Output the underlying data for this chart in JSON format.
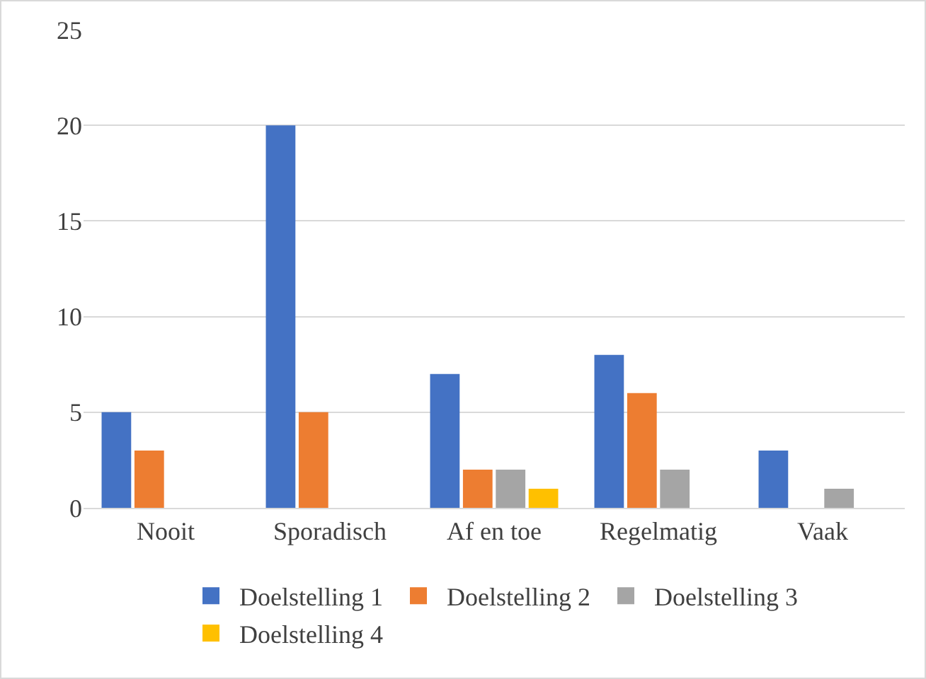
{
  "chart_data": {
    "type": "bar",
    "categories": [
      "Nooit",
      "Sporadisch",
      "Af en toe",
      "Regelmatig",
      "Vaak"
    ],
    "series": [
      {
        "name": "Doelstelling 1",
        "color": "#4472c4",
        "values": [
          5,
          20,
          7,
          8,
          3
        ]
      },
      {
        "name": "Doelstelling 2",
        "color": "#ed7d31",
        "values": [
          3,
          5,
          2,
          6,
          0
        ]
      },
      {
        "name": "Doelstelling 3",
        "color": "#a5a5a5",
        "values": [
          0,
          0,
          2,
          2,
          1
        ]
      },
      {
        "name": "Doelstelling 4",
        "color": "#ffc000",
        "values": [
          0,
          0,
          1,
          0,
          0
        ]
      }
    ],
    "ylim": [
      0,
      25
    ],
    "yticks": [
      0,
      5,
      10,
      15,
      20,
      25
    ],
    "grid": "y",
    "legend": "bottom"
  }
}
